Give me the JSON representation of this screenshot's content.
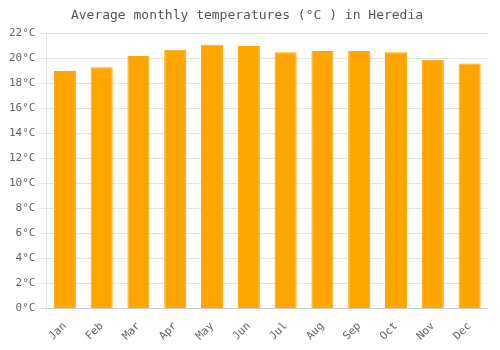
{
  "chart_data": {
    "type": "bar",
    "title": "Average monthly temperatures (°C ) in Heredia",
    "categories": [
      "Jan",
      "Feb",
      "Mar",
      "Apr",
      "May",
      "Jun",
      "Jul",
      "Aug",
      "Sep",
      "Oct",
      "Nov",
      "Dec"
    ],
    "values": [
      19.0,
      19.3,
      20.2,
      20.7,
      21.1,
      21.0,
      20.5,
      20.6,
      20.6,
      20.5,
      19.9,
      19.6
    ],
    "color": "#FFA500",
    "ylim": [
      0,
      22
    ],
    "yticks": [
      {
        "value": 0,
        "label": "0°C"
      },
      {
        "value": 2,
        "label": "2°C"
      },
      {
        "value": 4,
        "label": "4°C"
      },
      {
        "value": 6,
        "label": "6°C"
      },
      {
        "value": 8,
        "label": "8°C"
      },
      {
        "value": 10,
        "label": "10°C"
      },
      {
        "value": 12,
        "label": "12°C"
      },
      {
        "value": 14,
        "label": "14°C"
      },
      {
        "value": 16,
        "label": "16°C"
      },
      {
        "value": 18,
        "label": "18°C"
      },
      {
        "value": 20,
        "label": "20°C"
      },
      {
        "value": 22,
        "label": "22°C"
      }
    ],
    "grid": true
  }
}
